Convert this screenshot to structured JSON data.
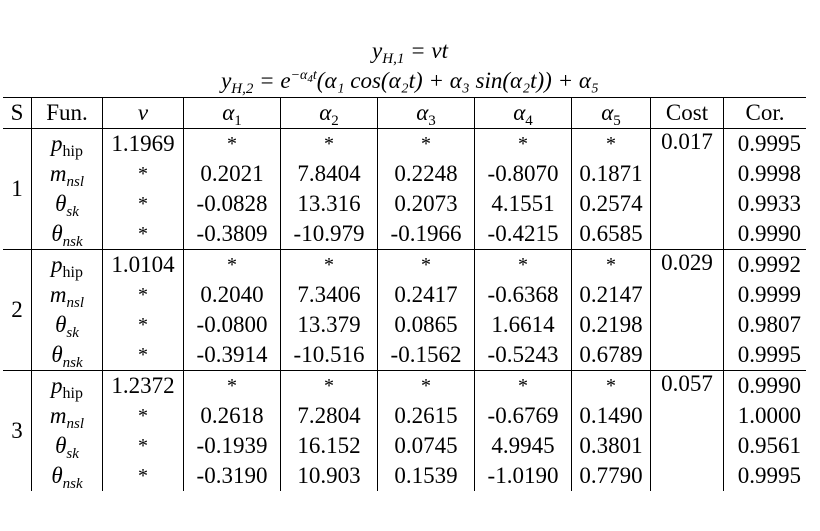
{
  "equations": {
    "line1_lhs": "y",
    "line1_lhs_sub": "H,1",
    "line1_rhs": " = vt",
    "line2_lhs": "y",
    "line2_lhs_sub": "H,2",
    "line2_eq": " = e",
    "line2_exp": "−α",
    "line2_exp_sub": "4",
    "line2_exp_tail": "t",
    "line2_body": "(α₁ cos(α₂t) + α₃ sin(α₂t)) + α₅"
  },
  "table": {
    "headers": {
      "s": "S",
      "fun": "Fun.",
      "nu": "ν",
      "a1": "α",
      "a1_sub": "1",
      "a2": "α",
      "a2_sub": "2",
      "a3": "α",
      "a3_sub": "3",
      "a4": "α",
      "a4_sub": "4",
      "a5": "α",
      "a5_sub": "5",
      "cost": "Cost",
      "cor": "Cor."
    },
    "groups": [
      {
        "s": "1",
        "cost": "0.017",
        "rows": [
          {
            "fun": "p",
            "fun_sub": "hip",
            "nu": "1.1969",
            "a1": "*",
            "a2": "*",
            "a3": "*",
            "a4": "*",
            "a5": "*",
            "cor": "0.9995"
          },
          {
            "fun": "m",
            "fun_sub": "nsl",
            "nu": "*",
            "a1": "0.2021",
            "a2": "7.8404",
            "a3": "0.2248",
            "a4": "-0.8070",
            "a5": "0.1871",
            "cor": "0.9998"
          },
          {
            "fun": "θ",
            "fun_sub": "sk",
            "nu": "*",
            "a1": "-0.0828",
            "a2": "13.316",
            "a3": "0.2073",
            "a4": "4.1551",
            "a5": "0.2574",
            "cor": "0.9933"
          },
          {
            "fun": "θ",
            "fun_sub": "nsk",
            "nu": "*",
            "a1": "-0.3809",
            "a2": "-10.979",
            "a3": "-0.1966",
            "a4": "-0.4215",
            "a5": "0.6585",
            "cor": "0.9990"
          }
        ]
      },
      {
        "s": "2",
        "cost": "0.029",
        "rows": [
          {
            "fun": "p",
            "fun_sub": "hip",
            "nu": "1.0104",
            "a1": "*",
            "a2": "*",
            "a3": "*",
            "a4": "*",
            "a5": "*",
            "cor": "0.9992"
          },
          {
            "fun": "m",
            "fun_sub": "nsl",
            "nu": "*",
            "a1": "0.2040",
            "a2": "7.3406",
            "a3": "0.2417",
            "a4": "-0.6368",
            "a5": "0.2147",
            "cor": "0.9999"
          },
          {
            "fun": "θ",
            "fun_sub": "sk",
            "nu": "*",
            "a1": "-0.0800",
            "a2": "13.379",
            "a3": "0.0865",
            "a4": "1.6614",
            "a5": "0.2198",
            "cor": "0.9807"
          },
          {
            "fun": "θ",
            "fun_sub": "nsk",
            "nu": "*",
            "a1": "-0.3914",
            "a2": "-10.516",
            "a3": "-0.1562",
            "a4": "-0.5243",
            "a5": "0.6789",
            "cor": "0.9995"
          }
        ]
      },
      {
        "s": "3",
        "cost": "0.057",
        "rows": [
          {
            "fun": "p",
            "fun_sub": "hip",
            "nu": "1.2372",
            "a1": "*",
            "a2": "*",
            "a3": "*",
            "a4": "*",
            "a5": "*",
            "cor": "0.9990"
          },
          {
            "fun": "m",
            "fun_sub": "nsl",
            "nu": "*",
            "a1": "0.2618",
            "a2": "7.2804",
            "a3": "0.2615",
            "a4": "-0.6769",
            "a5": "0.1490",
            "cor": "1.0000"
          },
          {
            "fun": "θ",
            "fun_sub": "sk",
            "nu": "*",
            "a1": "-0.1939",
            "a2": "16.152",
            "a3": "0.0745",
            "a4": "4.9945",
            "a5": "0.3801",
            "cor": "0.9561"
          },
          {
            "fun": "θ",
            "fun_sub": "nsk",
            "nu": "*",
            "a1": "-0.3190",
            "a2": "10.903",
            "a3": "0.1539",
            "a4": "-1.0190",
            "a5": "0.7790",
            "cor": "0.9995"
          }
        ]
      }
    ]
  }
}
